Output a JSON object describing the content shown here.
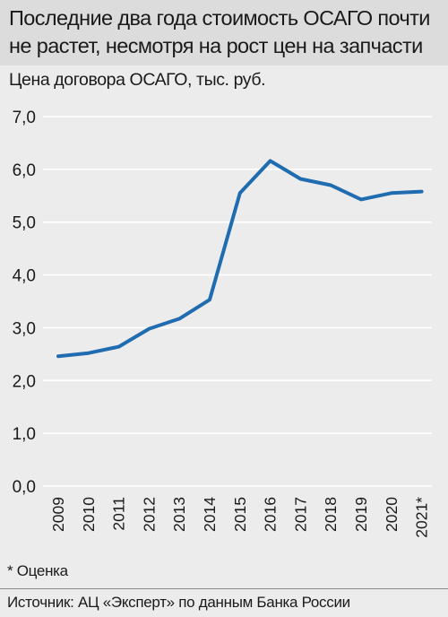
{
  "header": {
    "title": "Последние два года стоимость ОСАГО почти не растет, несмотря на рост цен на запчасти"
  },
  "chart_data": {
    "type": "line",
    "title": "Последние два года стоимость ОСАГО почти не растет, несмотря на рост цен на запчасти",
    "ylabel": "Цена договора ОСАГО, тыс. руб.",
    "xlabel": "",
    "categories": [
      "2009",
      "2010",
      "2011",
      "2012",
      "2013",
      "2014",
      "2015",
      "2016",
      "2017",
      "2018",
      "2019",
      "2020",
      "2021*"
    ],
    "series": [
      {
        "values": [
          2.46,
          2.52,
          2.64,
          2.98,
          3.17,
          3.53,
          5.55,
          6.16,
          5.82,
          5.7,
          5.43,
          5.55,
          5.58
        ]
      }
    ],
    "ylim": [
      0,
      7
    ],
    "yticks": [
      "0,0",
      "1,0",
      "2,0",
      "3,0",
      "4,0",
      "5,0",
      "6,0",
      "7,0"
    ],
    "grid": true,
    "line_color": "#1f6cb0",
    "grid_color": "#ffffff"
  },
  "footer": {
    "note": "* Оценка",
    "source": "Источник: АЦ «Эксперт» по данным Банка России"
  }
}
